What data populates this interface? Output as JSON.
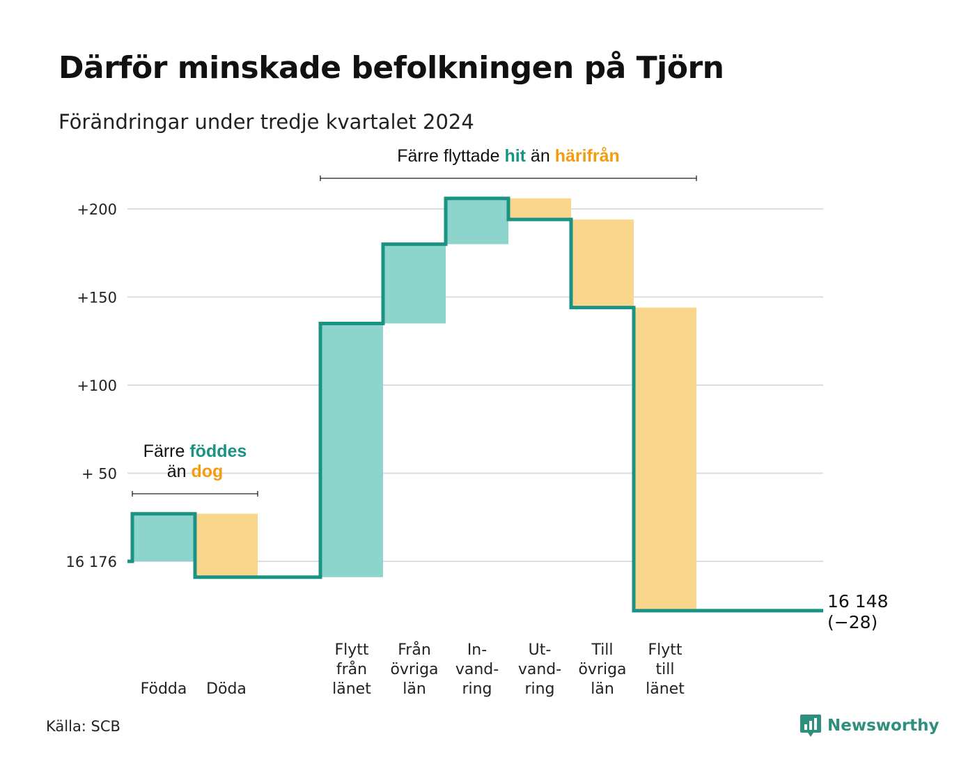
{
  "title": "Därför minskade befolkningen på Tjörn",
  "subtitle": "Förändringar under tredje kvartalet 2024",
  "source": "Källa: SCB",
  "brand": "Newsworthy",
  "colors": {
    "increase_fill": "#8dd5cc",
    "decrease_fill": "#f9d68c",
    "line": "#1b9384",
    "increase_text": "#1b9384",
    "decrease_text": "#f39c12",
    "grid": "#dddddd"
  },
  "chart_data": {
    "type": "waterfall",
    "baseline": 16176,
    "baseline_label": "16 176",
    "yticks": [
      {
        "value": 200,
        "label": "+200"
      },
      {
        "value": 150,
        "label": "+150"
      },
      {
        "value": 100,
        "label": "+100"
      },
      {
        "value": 50,
        "label": "+ 50"
      },
      {
        "value": 0,
        "label": "16 176"
      }
    ],
    "ylim": [
      -35,
      212
    ],
    "steps": [
      {
        "label": [
          "Födda"
        ],
        "change": 27
      },
      {
        "label": [
          "Döda"
        ],
        "change": -36
      },
      {
        "label": [],
        "change": 0
      },
      {
        "label": [
          "Flytt",
          "från",
          "länet"
        ],
        "change": 144
      },
      {
        "label": [
          "Från",
          "övriga",
          "län"
        ],
        "change": 45
      },
      {
        "label": [
          "In-",
          "vand-",
          "ring"
        ],
        "change": 26
      },
      {
        "label": [
          "Ut-",
          "vand-",
          "ring"
        ],
        "change": -12
      },
      {
        "label": [
          "Till",
          "övriga",
          "län"
        ],
        "change": -50
      },
      {
        "label": [
          "Flytt",
          "till",
          "länet"
        ],
        "change": -172
      },
      {
        "label": [],
        "change": 0
      }
    ],
    "end_label": [
      "16 148",
      "(−28)"
    ],
    "annotations": [
      {
        "parts": [
          {
            "text": "Färre ",
            "kind": "plain"
          },
          {
            "text": "föddes",
            "kind": "increase"
          },
          {
            "text": "än ",
            "kind": "plain",
            "newline": true
          },
          {
            "text": "dog",
            "kind": "decrease"
          }
        ],
        "span_from": 0,
        "span_to": 1
      },
      {
        "parts": [
          {
            "text": "Färre flyttade ",
            "kind": "plain"
          },
          {
            "text": "hit",
            "kind": "increase"
          },
          {
            "text": " än ",
            "kind": "plain"
          },
          {
            "text": "härifrån",
            "kind": "decrease"
          }
        ],
        "span_from": 3,
        "span_to": 8
      }
    ]
  }
}
